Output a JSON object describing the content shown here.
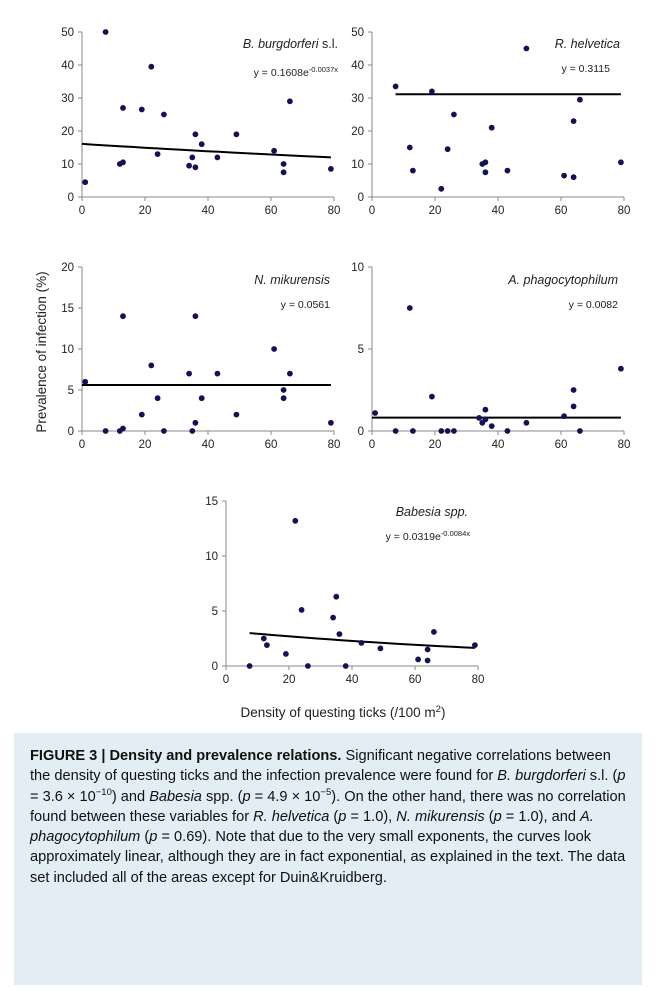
{
  "chart_data": [
    {
      "type": "scatter",
      "series_name": "B. burgdorferi",
      "series_suffix": " s.l.",
      "equation_base": "y = 0.1608e",
      "equation_exp": "-0.0037x",
      "fit": {
        "type": "exponential",
        "a": 16.08,
        "b": -0.0037
      },
      "xlim": [
        0,
        80
      ],
      "ylim": [
        0,
        50
      ],
      "xticks": [
        "0",
        "20",
        "40",
        "60",
        "80"
      ],
      "yticks": [
        "0",
        "10",
        "20",
        "30",
        "40",
        "50"
      ],
      "points": [
        [
          1,
          4.5
        ],
        [
          7.5,
          50
        ],
        [
          12,
          10
        ],
        [
          13,
          27
        ],
        [
          13,
          10.5
        ],
        [
          19,
          26.5
        ],
        [
          22,
          39.5
        ],
        [
          24,
          13
        ],
        [
          26,
          25
        ],
        [
          34,
          9.5
        ],
        [
          35,
          12
        ],
        [
          36,
          19
        ],
        [
          36,
          9
        ],
        [
          38,
          16
        ],
        [
          43,
          12
        ],
        [
          49,
          19
        ],
        [
          61,
          14
        ],
        [
          64,
          10
        ],
        [
          64,
          7.5
        ],
        [
          66,
          29
        ],
        [
          79,
          8.5
        ]
      ]
    },
    {
      "type": "scatter",
      "series_name": "R. helvetica",
      "series_suffix": "",
      "equation_base": "y = 0.3115",
      "equation_exp": "",
      "fit": {
        "type": "constant",
        "a": 31.15
      },
      "xlim": [
        0,
        80
      ],
      "ylim": [
        0,
        50
      ],
      "xticks": [
        "0",
        "20",
        "40",
        "60",
        "80"
      ],
      "yticks": [
        "0",
        "10",
        "20",
        "30",
        "40",
        "50"
      ],
      "points": [
        [
          7.5,
          33.5
        ],
        [
          12,
          15
        ],
        [
          13,
          8
        ],
        [
          19,
          32
        ],
        [
          22,
          2.5
        ],
        [
          24,
          14.5
        ],
        [
          26,
          25
        ],
        [
          35,
          10
        ],
        [
          36,
          10.5
        ],
        [
          36,
          7.5
        ],
        [
          38,
          21
        ],
        [
          43,
          8
        ],
        [
          49,
          45
        ],
        [
          61,
          6.5
        ],
        [
          64,
          6
        ],
        [
          64,
          23
        ],
        [
          66,
          29.5
        ],
        [
          79,
          10.5
        ]
      ]
    },
    {
      "type": "scatter",
      "series_name": "N. mikurensis",
      "series_suffix": "",
      "equation_base": "y = 0.0561",
      "equation_exp": "",
      "fit": {
        "type": "constant",
        "a": 5.61
      },
      "xlim": [
        0,
        80
      ],
      "ylim": [
        0,
        20
      ],
      "xticks": [
        "0",
        "20",
        "40",
        "60",
        "80"
      ],
      "yticks": [
        "0",
        "5",
        "10",
        "15",
        "20"
      ],
      "points": [
        [
          1,
          6
        ],
        [
          7.5,
          0
        ],
        [
          12,
          0
        ],
        [
          13,
          14
        ],
        [
          13,
          0.3
        ],
        [
          19,
          2
        ],
        [
          22,
          8
        ],
        [
          24,
          4
        ],
        [
          26,
          0
        ],
        [
          34,
          7
        ],
        [
          35,
          0
        ],
        [
          36,
          14
        ],
        [
          36,
          1
        ],
        [
          38,
          4
        ],
        [
          43,
          7
        ],
        [
          49,
          2
        ],
        [
          61,
          10
        ],
        [
          64,
          5
        ],
        [
          64,
          4
        ],
        [
          66,
          7
        ],
        [
          79,
          1
        ]
      ]
    },
    {
      "type": "scatter",
      "series_name": "A. phagocytophilum",
      "series_suffix": "",
      "equation_base": "y = 0.0082",
      "equation_exp": "",
      "fit": {
        "type": "constant",
        "a": 0.82
      },
      "xlim": [
        0,
        80
      ],
      "ylim": [
        0,
        10
      ],
      "xticks": [
        "0",
        "20",
        "40",
        "60",
        "80"
      ],
      "yticks": [
        "0",
        "5",
        "10"
      ],
      "points": [
        [
          1,
          1.1
        ],
        [
          7.5,
          0
        ],
        [
          12,
          7.5
        ],
        [
          13,
          0
        ],
        [
          19,
          2.1
        ],
        [
          22,
          0
        ],
        [
          24,
          0
        ],
        [
          26,
          0
        ],
        [
          34,
          0.8
        ],
        [
          35,
          0.5
        ],
        [
          36,
          1.3
        ],
        [
          36,
          0.7
        ],
        [
          38,
          0.3
        ],
        [
          43,
          0
        ],
        [
          49,
          0.5
        ],
        [
          61,
          0.9
        ],
        [
          64,
          2.5
        ],
        [
          64,
          1.5
        ],
        [
          66,
          0
        ],
        [
          79,
          3.8
        ]
      ]
    },
    {
      "type": "scatter",
      "series_name": "Babesia spp.",
      "series_suffix": "",
      "equation_base": "y = 0.0319e",
      "equation_exp": "-0.0084x",
      "fit": {
        "type": "exponential",
        "a": 3.19,
        "b": -0.0084
      },
      "xlim": [
        0,
        80
      ],
      "ylim": [
        0,
        15
      ],
      "xticks": [
        "0",
        "20",
        "40",
        "60",
        "80"
      ],
      "yticks": [
        "0",
        "5",
        "10",
        "15"
      ],
      "points": [
        [
          7.5,
          0
        ],
        [
          12,
          2.5
        ],
        [
          13,
          1.9
        ],
        [
          19,
          1.1
        ],
        [
          22,
          13.2
        ],
        [
          24,
          5.1
        ],
        [
          26,
          0
        ],
        [
          34,
          4.4
        ],
        [
          35,
          6.3
        ],
        [
          36,
          2.9
        ],
        [
          38,
          0
        ],
        [
          43,
          2.1
        ],
        [
          49,
          1.6
        ],
        [
          61,
          0.6
        ],
        [
          64,
          0.5
        ],
        [
          64,
          1.5
        ],
        [
          66,
          3.1
        ],
        [
          79,
          1.9
        ]
      ]
    }
  ],
  "y_axis_label": "Prevalence of infection (%)",
  "x_axis_label_base": "Density of questing ticks (/100 m",
  "x_axis_label_sup": "2",
  "x_axis_label_end": ")",
  "caption": {
    "figure_label": "FIGURE 3 | Density and prevalence relations.",
    "t1": " Significant negative correlations between the density of questing ticks and the infection prevalence were found for ",
    "t1_italic": "B. burgdorferi",
    "t2": " s.l. (",
    "p1_var": "p",
    "p1_eq": " = 3.6 × 10",
    "p1_exp": "−10",
    "t3": ") and ",
    "t3_italic": "Babesia",
    "t4": " spp. (",
    "p2_var": "p",
    "p2_eq": " = 4.9 × 10",
    "p2_exp": "−5",
    "t5": "). On the other hand, there was no correlation found between these variables for ",
    "t5_italic": "R. helvetica",
    "t6": " (",
    "p3_var": "p",
    "t7": " = 1.0), ",
    "t7_italic": "N. mikurensis",
    "t8": " (",
    "p4_var": "p",
    "t9": " = 1.0), and ",
    "t9_italic": "A. phagocytophilum",
    "t10": " (",
    "p5_var": "p",
    "t11": " = 0.69). Note that due to the very small exponents, the curves look approximately linear, although they are in fact exponential, as explained in the text. The data set included all of the areas except for Duin&Kruidberg."
  },
  "colors": {
    "marker": "#131352",
    "line": "#000000",
    "caption_bg": "#e2edf4"
  }
}
